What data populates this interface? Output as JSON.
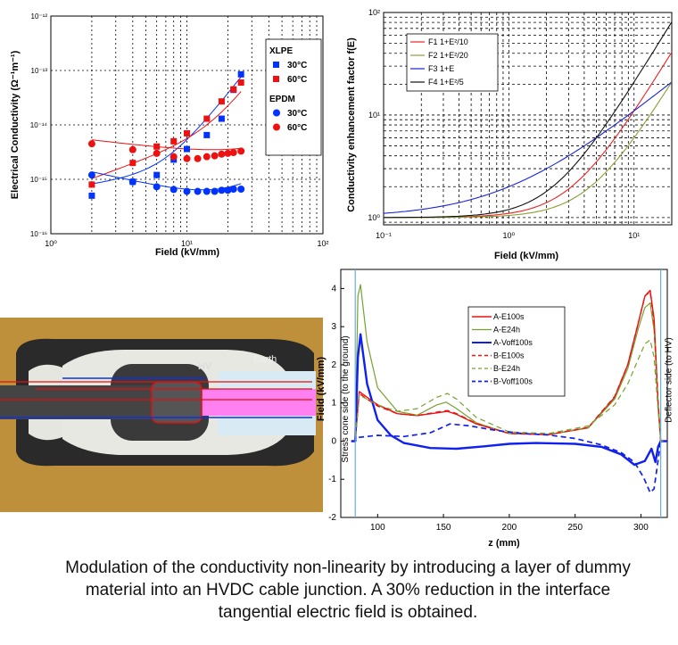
{
  "caption": "Modulation of the conductivity non-linearity by introducing a layer of dummy material into an HVDC cable junction. A 30% reduction in the interface tangential electric field is obtained.",
  "photo": {
    "labels": [
      "HV",
      "Earth"
    ],
    "colors": {
      "wood": "#c79a46",
      "rubber": "#2b2b2b",
      "insulation": "#e9e9e4",
      "core": "#ff7ff0",
      "line_red": "#e01010",
      "line_blue": "#1030e0"
    }
  },
  "chart_data": [
    {
      "type": "scatter",
      "id": "conductivity",
      "xlabel": "Field (kV/mm)",
      "ylabel": "Electrical Conductivity (Ω⁻¹m⁻¹)",
      "xscale": "log",
      "yscale": "log",
      "xlim": [
        1,
        100
      ],
      "ylim": [
        1e-16,
        1e-12
      ],
      "xticks": [
        "10⁰",
        "10¹",
        "10²"
      ],
      "yticks": [
        "10⁻¹²",
        "10⁻¹³",
        "10⁻¹⁴",
        "10⁻¹⁵",
        "10⁻¹⁶"
      ],
      "grid": true,
      "legend": {
        "position": "right",
        "groups": [
          {
            "title": "XLPE",
            "entries": [
              {
                "label": "30°C",
                "marker": "square",
                "color": "#0033ff"
              },
              {
                "label": "60°C",
                "marker": "square",
                "color": "#ee1111"
              }
            ]
          },
          {
            "title": "EPDM",
            "entries": [
              {
                "label": "30°C",
                "marker": "circle",
                "color": "#0033ff"
              },
              {
                "label": "60°C",
                "marker": "circle",
                "color": "#ee1111"
              }
            ]
          }
        ]
      },
      "series": [
        {
          "material": "XLPE",
          "temp": "30°C",
          "marker": "square",
          "color": "#0033ff",
          "x": [
            2,
            4,
            6,
            8,
            10,
            14,
            18,
            22,
            25
          ],
          "y": [
            5e-16,
            9e-16,
            1.2e-15,
            2.3e-15,
            3.6e-15,
            6.5e-15,
            1.3e-14,
            4.4e-14,
            8.5e-14
          ],
          "fit_x": [
            2,
            25
          ],
          "fit_a": 6.3e-16,
          "fit_p": 0.35,
          "fit_b": 2.5e-18,
          "fit_q": 3.2
        },
        {
          "material": "XLPE",
          "temp": "60°C",
          "marker": "square",
          "color": "#ee1111",
          "x": [
            2,
            4,
            6,
            8,
            10,
            14,
            18,
            22,
            25
          ],
          "y": [
            8e-16,
            2e-15,
            4e-15,
            5e-15,
            7e-15,
            1.3e-14,
            2.7e-14,
            4.5e-14,
            6e-14
          ],
          "fit_x": [
            2,
            25
          ],
          "fit_a": 5.5e-16,
          "fit_p": 0.9,
          "fit_b": 4e-19,
          "fit_q": 3.5
        },
        {
          "material": "EPDM",
          "temp": "30°C",
          "marker": "circle",
          "color": "#0033ff",
          "x": [
            2,
            4,
            6,
            8,
            10,
            12,
            14,
            16,
            18,
            20,
            22,
            25
          ],
          "y": [
            1.2e-15,
            9e-16,
            7.3e-16,
            6.5e-16,
            6e-16,
            6e-16,
            6e-16,
            6e-16,
            6.3e-16,
            6.3e-16,
            6.6e-16,
            6.6e-16
          ],
          "fit_x": [
            2,
            25
          ],
          "fit_a": 2e-15,
          "fit_p": -0.55,
          "fit_b": 1.5e-18,
          "fit_q": 1.8
        },
        {
          "material": "EPDM",
          "temp": "60°C",
          "marker": "circle",
          "color": "#ee1111",
          "x": [
            2,
            4,
            6,
            8,
            10,
            12,
            14,
            16,
            18,
            20,
            22,
            25
          ],
          "y": [
            4.5e-15,
            3.5e-15,
            3e-15,
            2.6e-15,
            2.4e-15,
            2.4e-15,
            2.6e-15,
            2.7e-15,
            2.9e-15,
            3e-15,
            3.1e-15,
            3.3e-15
          ],
          "fit_x": [
            2,
            25
          ],
          "fit_a": 6.5e-15,
          "fit_p": -0.3,
          "fit_b": 1.6e-17,
          "fit_q": 1.35
        }
      ]
    },
    {
      "type": "line",
      "id": "enhancement",
      "xlabel": "Field (kV/mm)",
      "ylabel": "Conductivity enhancement factor f(E)",
      "xscale": "log",
      "yscale": "log",
      "xlim": [
        0.1,
        20
      ],
      "ylim": [
        0.85,
        100
      ],
      "xticks": [
        "10⁻¹",
        "10⁰",
        "10¹"
      ],
      "yticks": [
        "10⁰",
        "10¹",
        "10²"
      ],
      "grid": true,
      "legend": {
        "position": "top-left"
      },
      "series": [
        {
          "name": "F1 1+E²/10",
          "color": "#ee2222",
          "formula": "1+E^2/10"
        },
        {
          "name": "F2 1+E²/20",
          "color": "#88a030",
          "formula": "1+E^2/20"
        },
        {
          "name": "F3 1+E",
          "color": "#1a22dd",
          "formula": "1+E"
        },
        {
          "name": "F4 1+E²/5",
          "color": "#111111",
          "formula": "1+E^2/5"
        }
      ]
    },
    {
      "type": "line",
      "id": "field_profile",
      "xlabel": "z (mm)",
      "ylabel": "Field (kV/mm)",
      "xlim": [
        72,
        320
      ],
      "ylim": [
        -2,
        4.5
      ],
      "xticks": [
        100,
        150,
        200,
        250,
        300
      ],
      "yticks": [
        -2,
        -1,
        0,
        1,
        2,
        3,
        4
      ],
      "grid": false,
      "annotations": [
        "Stress cone side (to the ground)",
        "Deflector side (to HV)"
      ],
      "vlines": [
        83,
        315
      ],
      "legend": {
        "position": "top-right"
      },
      "series": [
        {
          "name": "A-E100s",
          "color": "#ee1111",
          "dash": "solid",
          "width": 1.4,
          "x": [
            80,
            83,
            86,
            92,
            100,
            115,
            130,
            145,
            153,
            160,
            175,
            200,
            230,
            260,
            280,
            290,
            298,
            303,
            307,
            310,
            313,
            315,
            320
          ],
          "y": [
            0,
            0,
            1.3,
            1.15,
            0.95,
            0.72,
            0.67,
            0.74,
            0.78,
            0.7,
            0.45,
            0.2,
            0.17,
            0.35,
            1.15,
            2.0,
            3.1,
            3.8,
            3.95,
            3.2,
            1.0,
            0,
            0
          ]
        },
        {
          "name": "A-E24h",
          "color": "#77a030",
          "dash": "solid",
          "width": 1.2,
          "x": [
            80,
            83,
            85,
            87,
            92,
            100,
            115,
            130,
            145,
            152,
            160,
            175,
            200,
            230,
            260,
            280,
            290,
            298,
            303,
            307,
            310,
            313,
            315,
            320
          ],
          "y": [
            0,
            0,
            3.8,
            4.1,
            2.6,
            1.4,
            0.78,
            0.68,
            0.95,
            1.02,
            0.85,
            0.48,
            0.2,
            0.18,
            0.35,
            1.1,
            1.9,
            2.95,
            3.5,
            3.62,
            2.9,
            1.0,
            0,
            0
          ]
        },
        {
          "name": "A-Voff100s",
          "color": "#1020ee",
          "dash": "solid",
          "width": 2.4,
          "x": [
            80,
            83,
            85,
            87,
            92,
            100,
            110,
            120,
            140,
            160,
            180,
            200,
            220,
            250,
            270,
            285,
            295,
            303,
            308,
            311,
            313,
            315,
            320
          ],
          "y": [
            0,
            0,
            2.2,
            2.8,
            1.5,
            0.55,
            0.15,
            -0.05,
            -0.18,
            -0.2,
            -0.14,
            -0.07,
            -0.05,
            -0.07,
            -0.15,
            -0.35,
            -0.62,
            -0.52,
            -0.2,
            -0.55,
            -0.15,
            0,
            0
          ]
        },
        {
          "name": "B-E100s",
          "color": "#ee1111",
          "dash": "dashed",
          "width": 1.4,
          "x": [
            80,
            83,
            86,
            92,
            100,
            115,
            130,
            145,
            153,
            160,
            175,
            200,
            230,
            260,
            280,
            290,
            298,
            303,
            307,
            310,
            313,
            315,
            320
          ],
          "y": [
            0,
            0,
            1.25,
            1.1,
            0.92,
            0.72,
            0.67,
            0.76,
            0.8,
            0.72,
            0.46,
            0.2,
            0.17,
            0.36,
            1.17,
            2.0,
            3.1,
            3.8,
            3.92,
            3.1,
            1.0,
            0,
            0
          ]
        },
        {
          "name": "B-E24h",
          "color": "#77a030",
          "dash": "dashed",
          "width": 1.2,
          "x": [
            80,
            83,
            86,
            92,
            100,
            115,
            130,
            145,
            153,
            160,
            175,
            200,
            230,
            260,
            280,
            290,
            298,
            303,
            307,
            310,
            313,
            315,
            320
          ],
          "y": [
            0,
            0,
            1.2,
            1.1,
            0.95,
            0.78,
            0.85,
            1.15,
            1.25,
            1.1,
            0.62,
            0.24,
            0.2,
            0.4,
            0.95,
            1.5,
            2.15,
            2.55,
            2.65,
            2.2,
            0.8,
            0,
            0
          ]
        },
        {
          "name": "B-Voff100s",
          "color": "#1020ee",
          "dash": "dashed",
          "width": 1.7,
          "x": [
            80,
            83,
            86,
            100,
            120,
            140,
            155,
            170,
            190,
            210,
            230,
            250,
            270,
            285,
            295,
            302,
            307,
            310,
            313,
            315,
            320
          ],
          "y": [
            0,
            0,
            0.1,
            0.15,
            0.12,
            0.22,
            0.45,
            0.4,
            0.28,
            0.2,
            0.16,
            0.07,
            -0.1,
            -0.3,
            -0.55,
            -0.95,
            -1.35,
            -1.25,
            -0.5,
            0,
            0
          ]
        }
      ]
    }
  ]
}
